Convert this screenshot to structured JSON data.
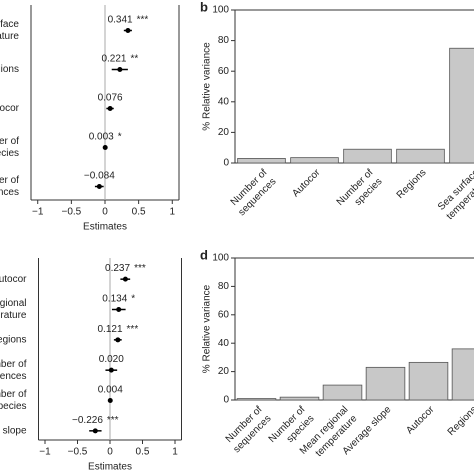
{
  "chart_data": [
    {
      "type": "forest",
      "xlabel": "Estimates",
      "categories": [
        [
          "Sea surface",
          "temperature"
        ],
        [
          "Regions"
        ],
        [
          "Autocor"
        ],
        [
          "Number of",
          "species"
        ],
        [
          "Number of",
          "sequences"
        ]
      ],
      "values": [
        0.341,
        0.221,
        0.076,
        0.003,
        -0.084
      ],
      "value_labels": [
        "0.341",
        "0.221",
        "0.076",
        "0.003",
        "−0.084"
      ],
      "significance": [
        "***",
        "**",
        null,
        "*",
        null
      ],
      "ci": [
        [
          0.28,
          0.4
        ],
        [
          0.1,
          0.34
        ],
        [
          0.02,
          0.13
        ],
        [
          -0.01,
          0.02
        ],
        [
          -0.15,
          -0.02
        ]
      ],
      "xlim": [
        -1.1,
        1.1
      ],
      "xticks": [
        {
          "value": -1,
          "label": "−1"
        },
        {
          "value": -0.5,
          "label": "−0.5"
        },
        0,
        0.5,
        1
      ],
      "color": "#000000"
    },
    {
      "type": "bar",
      "label": "b",
      "ylabel": "% Relative variance",
      "categories": [
        [
          "Number of",
          "sequences"
        ],
        [
          "Autocor"
        ],
        [
          "Number of",
          "species"
        ],
        [
          "Regions"
        ],
        [
          "Sea surface",
          "temperature"
        ]
      ],
      "values": [
        3,
        3.5,
        9,
        9,
        75
      ],
      "ylim": [
        0,
        100
      ],
      "yticks": [
        0,
        20,
        40,
        60,
        80,
        100
      ],
      "color": "#c8c8c8"
    },
    {
      "type": "forest",
      "xlabel": "Estimates",
      "categories": [
        [
          "Autocor"
        ],
        [
          "Mean regional",
          "temperature"
        ],
        [
          "Regions"
        ],
        [
          "Number of",
          "sequences"
        ],
        [
          "Number of",
          "species"
        ],
        [
          "Average slope"
        ]
      ],
      "values": [
        0.237,
        0.134,
        0.121,
        0.02,
        0.004,
        -0.226
      ],
      "value_labels": [
        "0.237",
        "0.134",
        "0.121",
        "0.020",
        "0.004",
        "−0.226"
      ],
      "significance": [
        "***",
        "*",
        "***",
        null,
        null,
        "***"
      ],
      "ci": [
        [
          0.16,
          0.31
        ],
        [
          0.03,
          0.24
        ],
        [
          0.06,
          0.18
        ],
        [
          -0.07,
          0.11
        ],
        [
          -0.01,
          0.02
        ],
        [
          -0.32,
          -0.13
        ]
      ],
      "xlim": [
        -1.1,
        1.1
      ],
      "xticks": [
        {
          "value": -1,
          "label": "−1"
        },
        {
          "value": -0.5,
          "label": "−0.5"
        },
        0,
        0.5,
        1
      ],
      "color": "#000000"
    },
    {
      "type": "bar",
      "label": "d",
      "ylabel": "% Relative variance",
      "categories": [
        [
          "Number of",
          "sequences"
        ],
        [
          "Number of",
          "species"
        ],
        [
          "Mean regional",
          "temperature"
        ],
        [
          "Average slope"
        ],
        [
          "Autocor"
        ],
        [
          "Regions"
        ]
      ],
      "values": [
        1,
        2,
        10.5,
        23,
        26.5,
        36
      ],
      "ylim": [
        0,
        100
      ],
      "yticks": [
        0,
        20,
        40,
        60,
        80,
        100
      ],
      "color": "#c8c8c8"
    }
  ]
}
